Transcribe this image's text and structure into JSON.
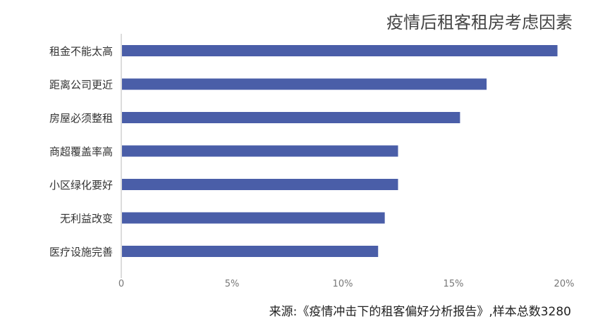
{
  "chart_data": {
    "type": "bar",
    "orientation": "horizontal",
    "title": "疫情后租客租房考虑因素",
    "source": "来源:《疫情冲击下的租客偏好分析报告》,样本总数3280",
    "categories": [
      "租金不能太高",
      "距离公司更近",
      "房屋必须整租",
      "商超覆盖率高",
      "小区绿化要好",
      "无利益改变",
      "医疗设施完善"
    ],
    "values": [
      19.7,
      16.5,
      15.3,
      12.5,
      12.5,
      11.9,
      11.6
    ],
    "unit": "%",
    "xlim": [
      0,
      20
    ],
    "xticks": [
      "0",
      "5%",
      "10%",
      "15%",
      "20%"
    ],
    "grid": false,
    "bar_color": "#4a5ea8"
  }
}
